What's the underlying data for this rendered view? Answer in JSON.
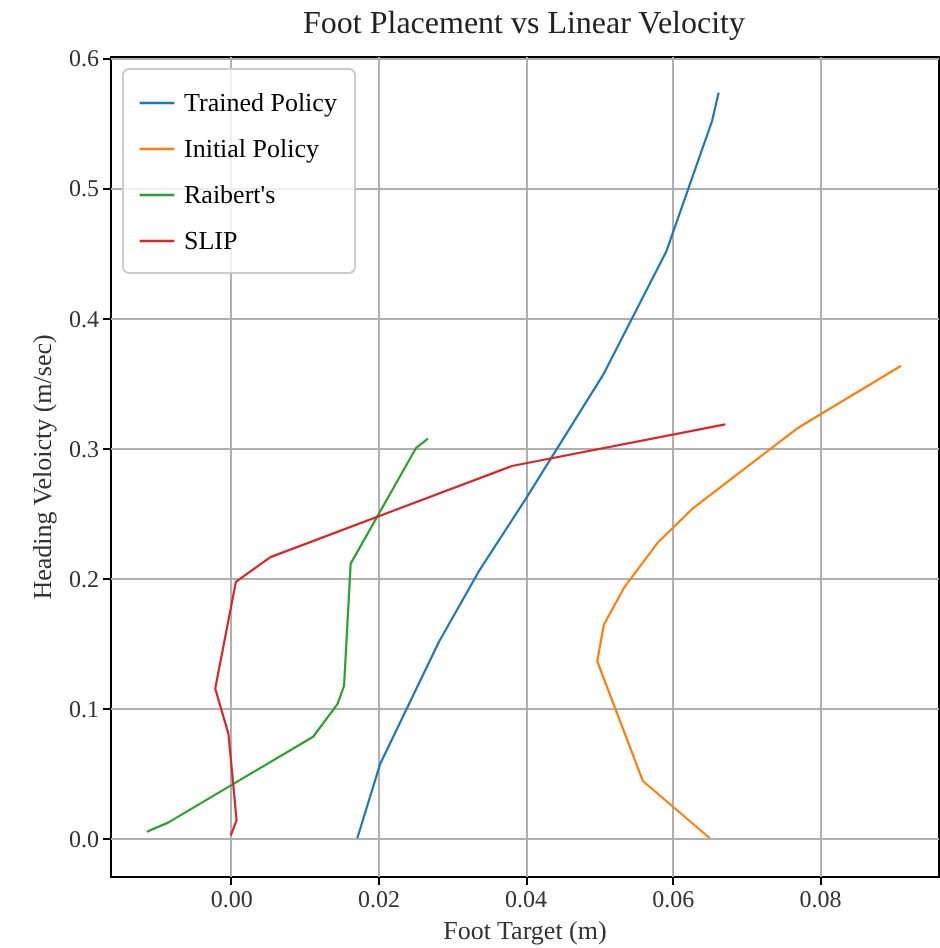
{
  "chart_data": {
    "type": "line",
    "title": "Foot Placement vs Linear Velocity",
    "xlabel": "Foot Target (m)",
    "ylabel": "Heading Veloicty (m/sec)",
    "xlim": [
      -0.0164,
      0.0961
    ],
    "ylim": [
      -0.029,
      0.601
    ],
    "xticks": [
      {
        "value": 0,
        "label": "0.00"
      },
      {
        "value": 0.02,
        "label": "0.02"
      },
      {
        "value": 0.04,
        "label": "0.04"
      },
      {
        "value": 0.06,
        "label": "0.06"
      },
      {
        "value": 0.08,
        "label": "0.08"
      }
    ],
    "yticks": [
      {
        "value": 0,
        "label": "0.0"
      },
      {
        "value": 0.1,
        "label": "0.1"
      },
      {
        "value": 0.2,
        "label": "0.2"
      },
      {
        "value": 0.3,
        "label": "0.3"
      },
      {
        "value": 0.4,
        "label": "0.4"
      },
      {
        "value": 0.5,
        "label": "0.5"
      },
      {
        "value": 0.6,
        "label": "0.6"
      }
    ],
    "grid": true,
    "legend": "top left",
    "line_style": "solid",
    "marker": "none",
    "series": [
      {
        "name": "Trained Policy",
        "color": "#1f77b4",
        "x": [
          0.0172,
          0.0203,
          0.0283,
          0.0337,
          0.04,
          0.0507,
          0.0592,
          0.0654,
          0.0663
        ],
        "values": [
          0.0,
          0.057,
          0.151,
          0.205,
          0.26,
          0.357,
          0.451,
          0.551,
          0.573
        ]
      },
      {
        "name": "Initial Policy",
        "color": "#ff7f0e",
        "x": [
          0.0651,
          0.056,
          0.0498,
          0.0507,
          0.0535,
          0.058,
          0.0627,
          0.077,
          0.0802,
          0.0911
        ],
        "values": [
          0.0,
          0.044,
          0.136,
          0.164,
          0.193,
          0.227,
          0.253,
          0.315,
          0.326,
          0.363
        ]
      },
      {
        "name": "Raibert's",
        "color": "#2ca02c",
        "x": [
          -0.0114,
          -0.0085,
          0.0112,
          0.0145,
          0.0154,
          0.0163,
          0.0252,
          0.0268
        ],
        "values": [
          0.005,
          0.012,
          0.078,
          0.103,
          0.117,
          0.211,
          0.3,
          0.307
        ]
      },
      {
        "name": "SLIP",
        "color": "#d62728",
        "x": [
          0.0,
          0.0008,
          -0.0003,
          -0.0021,
          0.0007,
          0.0054,
          0.0382,
          0.0672
        ],
        "values": [
          0.002,
          0.014,
          0.08,
          0.115,
          0.197,
          0.216,
          0.286,
          0.318
        ]
      }
    ]
  }
}
